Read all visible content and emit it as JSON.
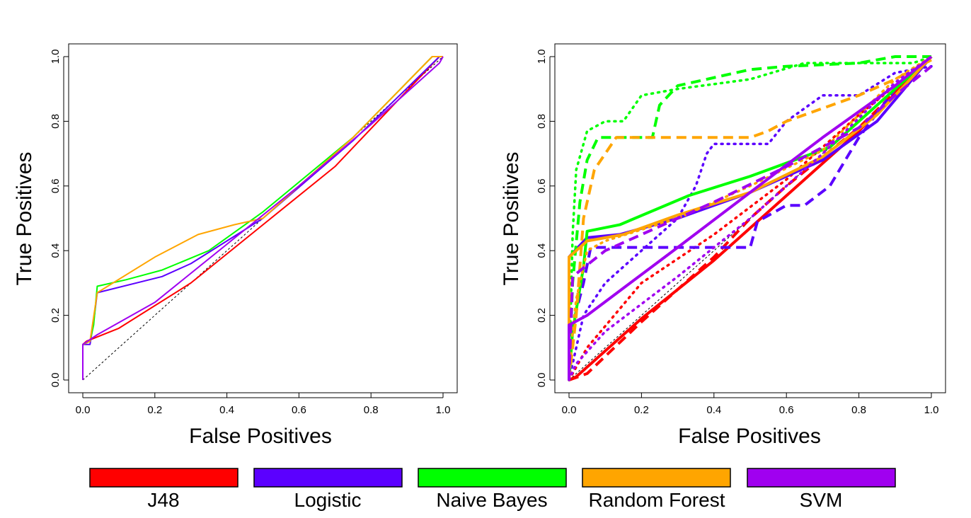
{
  "legend": [
    {
      "name": "J48",
      "color": "#ff0000"
    },
    {
      "name": "Logistic",
      "color": "#5b00ff"
    },
    {
      "name": "Naive Bayes",
      "color": "#00ff00"
    },
    {
      "name": "Random Forest",
      "color": "#ffa500"
    },
    {
      "name": "SVM",
      "color": "#a000f0"
    }
  ],
  "chart_data": [
    {
      "type": "line",
      "title": "",
      "xlabel": "False Positives",
      "ylabel": "True Positives",
      "xlim": [
        0,
        1
      ],
      "ylim": [
        0,
        1
      ],
      "xticks": [
        "0.0",
        "0.2",
        "0.4",
        "0.6",
        "0.8",
        "1.0"
      ],
      "yticks": [
        "0.0",
        "0.2",
        "0.4",
        "0.6",
        "0.8",
        "1.0"
      ],
      "diagonal": true,
      "series": [
        {
          "name": "J48",
          "color": "#ff0000",
          "style": "solid",
          "points": [
            [
              0,
              0
            ],
            [
              0,
              0.11
            ],
            [
              0.01,
              0.12
            ],
            [
              0.1,
              0.16
            ],
            [
              0.3,
              0.3
            ],
            [
              0.5,
              0.48
            ],
            [
              0.7,
              0.66
            ],
            [
              0.99,
              1.0
            ]
          ]
        },
        {
          "name": "Logistic",
          "color": "#5b00ff",
          "style": "solid",
          "points": [
            [
              0,
              0
            ],
            [
              0,
              0.11
            ],
            [
              0.02,
              0.11
            ],
            [
              0.03,
              0.18
            ],
            [
              0.04,
              0.27
            ],
            [
              0.22,
              0.32
            ],
            [
              0.3,
              0.36
            ],
            [
              0.5,
              0.5
            ],
            [
              0.75,
              0.74
            ],
            [
              0.99,
              1.0
            ]
          ]
        },
        {
          "name": "Naive Bayes",
          "color": "#00ff00",
          "style": "solid",
          "points": [
            [
              0,
              0
            ],
            [
              0,
              0.11
            ],
            [
              0.02,
              0.12
            ],
            [
              0.03,
              0.17
            ],
            [
              0.04,
              0.29
            ],
            [
              0.12,
              0.31
            ],
            [
              0.22,
              0.34
            ],
            [
              0.35,
              0.4
            ],
            [
              0.5,
              0.52
            ],
            [
              0.75,
              0.75
            ],
            [
              0.97,
              1.0
            ],
            [
              1.0,
              1.0
            ]
          ]
        },
        {
          "name": "Random Forest",
          "color": "#ffa500",
          "style": "solid",
          "points": [
            [
              0,
              0
            ],
            [
              0,
              0.11
            ],
            [
              0.02,
              0.12
            ],
            [
              0.04,
              0.27
            ],
            [
              0.2,
              0.38
            ],
            [
              0.32,
              0.45
            ],
            [
              0.42,
              0.48
            ],
            [
              0.5,
              0.5
            ],
            [
              0.75,
              0.75
            ],
            [
              0.97,
              1.0
            ],
            [
              1.0,
              1.0
            ]
          ]
        },
        {
          "name": "SVM",
          "color": "#a000f0",
          "style": "solid",
          "points": [
            [
              0,
              0
            ],
            [
              0,
              0.11
            ],
            [
              0.04,
              0.14
            ],
            [
              0.2,
              0.24
            ],
            [
              0.4,
              0.42
            ],
            [
              0.6,
              0.6
            ],
            [
              0.8,
              0.79
            ],
            [
              0.99,
              0.98
            ],
            [
              1.0,
              1.0
            ]
          ]
        }
      ]
    },
    {
      "type": "line",
      "title": "",
      "xlabel": "False Positives",
      "ylabel": "True Positives",
      "xlim": [
        0,
        1
      ],
      "ylim": [
        0,
        1
      ],
      "xticks": [
        "0.0",
        "0.2",
        "0.4",
        "0.6",
        "0.8",
        "1.0"
      ],
      "yticks": [
        "0.0",
        "0.2",
        "0.4",
        "0.6",
        "0.8",
        "1.0"
      ],
      "diagonal": true,
      "series": [
        {
          "name": "J48",
          "color": "#ff0000",
          "style": "solid",
          "points": [
            [
              0,
              0
            ],
            [
              0.02,
              0.01
            ],
            [
              0.2,
              0.19
            ],
            [
              0.4,
              0.37
            ],
            [
              0.6,
              0.57
            ],
            [
              0.8,
              0.77
            ],
            [
              1.0,
              1.0
            ]
          ]
        },
        {
          "name": "J48",
          "color": "#ff0000",
          "style": "dashed",
          "points": [
            [
              0,
              0
            ],
            [
              0.05,
              0.02
            ],
            [
              0.2,
              0.18
            ],
            [
              0.4,
              0.38
            ],
            [
              0.5,
              0.5
            ],
            [
              0.6,
              0.6
            ],
            [
              0.8,
              0.78
            ],
            [
              1.0,
              1.0
            ]
          ]
        },
        {
          "name": "J48",
          "color": "#ff0000",
          "style": "dotted",
          "points": [
            [
              0,
              0
            ],
            [
              0.05,
              0.1
            ],
            [
              0.2,
              0.3
            ],
            [
              0.4,
              0.45
            ],
            [
              0.6,
              0.62
            ],
            [
              0.8,
              0.82
            ],
            [
              1.0,
              1.0
            ]
          ]
        },
        {
          "name": "Logistic",
          "color": "#5b00ff",
          "style": "solid",
          "points": [
            [
              0,
              0
            ],
            [
              0,
              0.38
            ],
            [
              0.05,
              0.44
            ],
            [
              0.14,
              0.45
            ],
            [
              0.3,
              0.5
            ],
            [
              0.5,
              0.58
            ],
            [
              0.7,
              0.68
            ],
            [
              0.85,
              0.8
            ],
            [
              1.0,
              1.0
            ]
          ]
        },
        {
          "name": "Logistic",
          "color": "#5b00ff",
          "style": "dashed",
          "points": [
            [
              0,
              0
            ],
            [
              0.01,
              0.17
            ],
            [
              0.04,
              0.3
            ],
            [
              0.06,
              0.41
            ],
            [
              0.3,
              0.41
            ],
            [
              0.5,
              0.41
            ],
            [
              0.52,
              0.49
            ],
            [
              0.6,
              0.54
            ],
            [
              0.65,
              0.54
            ],
            [
              0.72,
              0.6
            ],
            [
              0.8,
              0.75
            ],
            [
              0.9,
              0.9
            ],
            [
              1.0,
              1.0
            ]
          ]
        },
        {
          "name": "Logistic",
          "color": "#5b00ff",
          "style": "dotted",
          "points": [
            [
              0,
              0
            ],
            [
              0.02,
              0.1
            ],
            [
              0.04,
              0.2
            ],
            [
              0.1,
              0.3
            ],
            [
              0.2,
              0.4
            ],
            [
              0.3,
              0.5
            ],
            [
              0.35,
              0.6
            ],
            [
              0.38,
              0.7
            ],
            [
              0.4,
              0.73
            ],
            [
              0.55,
              0.73
            ],
            [
              0.6,
              0.8
            ],
            [
              0.7,
              0.88
            ],
            [
              0.8,
              0.88
            ],
            [
              0.9,
              0.95
            ],
            [
              1.0,
              0.97
            ]
          ]
        },
        {
          "name": "Naive Bayes",
          "color": "#00ff00",
          "style": "solid",
          "points": [
            [
              0,
              0
            ],
            [
              0.01,
              0.15
            ],
            [
              0.04,
              0.35
            ],
            [
              0.05,
              0.46
            ],
            [
              0.14,
              0.48
            ],
            [
              0.33,
              0.57
            ],
            [
              0.5,
              0.63
            ],
            [
              0.72,
              0.72
            ],
            [
              0.85,
              0.85
            ],
            [
              1.0,
              1.0
            ]
          ]
        },
        {
          "name": "Naive Bayes",
          "color": "#00ff00",
          "style": "dashed",
          "points": [
            [
              0,
              0
            ],
            [
              0.01,
              0.3
            ],
            [
              0.03,
              0.55
            ],
            [
              0.05,
              0.68
            ],
            [
              0.08,
              0.75
            ],
            [
              0.23,
              0.75
            ],
            [
              0.25,
              0.85
            ],
            [
              0.3,
              0.91
            ],
            [
              0.5,
              0.96
            ],
            [
              0.6,
              0.97
            ],
            [
              0.8,
              0.98
            ],
            [
              0.9,
              1.0
            ],
            [
              1.0,
              1.0
            ]
          ]
        },
        {
          "name": "Naive Bayes",
          "color": "#00ff00",
          "style": "dotted",
          "points": [
            [
              0,
              0
            ],
            [
              0.01,
              0.45
            ],
            [
              0.02,
              0.65
            ],
            [
              0.05,
              0.77
            ],
            [
              0.1,
              0.8
            ],
            [
              0.15,
              0.8
            ],
            [
              0.2,
              0.88
            ],
            [
              0.3,
              0.9
            ],
            [
              0.5,
              0.93
            ],
            [
              0.65,
              0.98
            ],
            [
              0.8,
              0.98
            ],
            [
              0.95,
              0.98
            ],
            [
              1.0,
              1.0
            ]
          ]
        },
        {
          "name": "Random Forest",
          "color": "#ffa500",
          "style": "solid",
          "points": [
            [
              0,
              0
            ],
            [
              0,
              0.38
            ],
            [
              0.05,
              0.43
            ],
            [
              0.15,
              0.45
            ],
            [
              0.3,
              0.51
            ],
            [
              0.5,
              0.58
            ],
            [
              0.7,
              0.69
            ],
            [
              0.85,
              0.82
            ],
            [
              1.0,
              1.0
            ]
          ]
        },
        {
          "name": "Random Forest",
          "color": "#ffa500",
          "style": "dashed",
          "points": [
            [
              0,
              0
            ],
            [
              0.02,
              0.2
            ],
            [
              0.04,
              0.5
            ],
            [
              0.07,
              0.65
            ],
            [
              0.13,
              0.75
            ],
            [
              0.5,
              0.75
            ],
            [
              0.55,
              0.77
            ],
            [
              0.6,
              0.8
            ],
            [
              0.7,
              0.84
            ],
            [
              0.8,
              0.88
            ],
            [
              0.9,
              0.93
            ],
            [
              1.0,
              0.99
            ]
          ]
        },
        {
          "name": "Random Forest",
          "color": "#ffa500",
          "style": "dotted",
          "points": [
            [
              0,
              0
            ],
            [
              0.01,
              0.15
            ],
            [
              0.02,
              0.25
            ],
            [
              0.05,
              0.4
            ],
            [
              0.1,
              0.43
            ],
            [
              0.3,
              0.5
            ],
            [
              0.5,
              0.6
            ],
            [
              0.7,
              0.71
            ],
            [
              0.9,
              0.93
            ],
            [
              1.0,
              1.0
            ]
          ]
        },
        {
          "name": "SVM",
          "color": "#a000f0",
          "style": "solid",
          "points": [
            [
              0,
              0
            ],
            [
              0,
              0.17
            ],
            [
              0.05,
              0.2
            ],
            [
              0.3,
              0.41
            ],
            [
              0.5,
              0.58
            ],
            [
              0.7,
              0.75
            ],
            [
              0.9,
              0.91
            ],
            [
              1.0,
              1.0
            ]
          ]
        },
        {
          "name": "SVM",
          "color": "#a000f0",
          "style": "dashed",
          "points": [
            [
              0,
              0
            ],
            [
              0.01,
              0.32
            ],
            [
              0.1,
              0.4
            ],
            [
              0.2,
              0.45
            ],
            [
              0.4,
              0.55
            ],
            [
              0.6,
              0.66
            ],
            [
              0.8,
              0.78
            ],
            [
              0.9,
              0.88
            ],
            [
              1.0,
              0.97
            ]
          ]
        },
        {
          "name": "SVM",
          "color": "#a000f0",
          "style": "dotted",
          "points": [
            [
              0,
              0
            ],
            [
              0.02,
              0.05
            ],
            [
              0.1,
              0.15
            ],
            [
              0.3,
              0.32
            ],
            [
              0.5,
              0.5
            ],
            [
              0.7,
              0.7
            ],
            [
              0.9,
              0.92
            ],
            [
              1.0,
              1.0
            ]
          ]
        }
      ]
    }
  ]
}
